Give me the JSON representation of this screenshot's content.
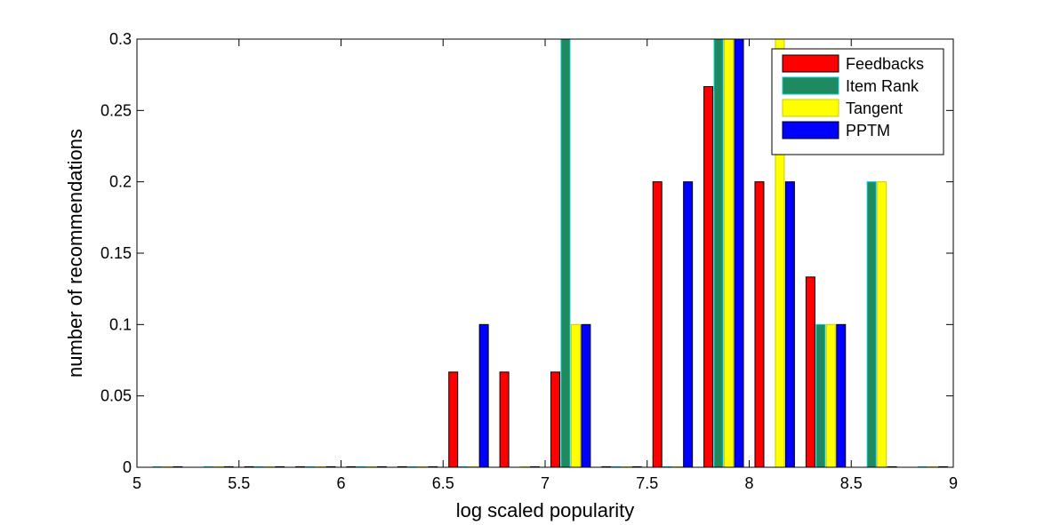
{
  "chart_data": {
    "type": "bar",
    "title": "",
    "xlabel": "log scaled popularity",
    "ylabel": "number of recommendations",
    "xlim": [
      5,
      9
    ],
    "ylim": [
      0,
      0.3
    ],
    "xticks": [
      "5",
      "5.5",
      "6",
      "6.5",
      "7",
      "7.5",
      "8",
      "8.5",
      "9"
    ],
    "yticks": [
      "0",
      "0.05",
      "0.1",
      "0.15",
      "0.2",
      "0.25",
      "0.3"
    ],
    "grid": false,
    "legend_position": "top-right",
    "series": [
      {
        "name": "Feedbacks",
        "color": "#ff0000",
        "edge": "#000000",
        "x": [
          5.55,
          5.8,
          6.05,
          6.3,
          6.55,
          6.8,
          7.05,
          7.3,
          7.55,
          7.8,
          8.05,
          8.3
        ],
        "values": [
          0,
          0,
          0,
          0,
          0.0667,
          0.0667,
          0.0667,
          0,
          0.2,
          0.2667,
          0.2,
          0.1333
        ]
      },
      {
        "name": "Item Rank",
        "color": "#1f8a60",
        "edge": "#00cccc",
        "x": [
          5.1,
          5.35,
          5.6,
          5.85,
          6.1,
          6.35,
          6.6,
          7.1,
          7.35,
          7.6,
          7.85,
          8.35,
          8.6,
          8.85
        ],
        "values": [
          0,
          0,
          0,
          0,
          0,
          0,
          0,
          0.3,
          0,
          0,
          0.3,
          0.1,
          0.2,
          0
        ]
      },
      {
        "name": "Tangent",
        "color": "#ffff00",
        "edge": "#cccc00",
        "x": [
          5.15,
          5.4,
          5.65,
          5.9,
          6.15,
          6.4,
          6.65,
          6.9,
          7.15,
          7.4,
          7.65,
          7.9,
          8.15,
          8.4,
          8.65,
          8.9
        ],
        "values": [
          0,
          0,
          0,
          0,
          0,
          0,
          0,
          0,
          0.1,
          0,
          0,
          0.3,
          0.3,
          0.1,
          0.2,
          0
        ]
      },
      {
        "name": "PPTM",
        "color": "#0000ff",
        "edge": "#000000",
        "x": [
          5.2,
          5.45,
          5.7,
          5.95,
          6.2,
          6.45,
          6.7,
          6.95,
          7.2,
          7.45,
          7.7,
          7.95,
          8.2,
          8.45,
          8.7,
          8.95
        ],
        "values": [
          0,
          0,
          0,
          0,
          0,
          0,
          0.1,
          0,
          0.1,
          0,
          0.2,
          0.3,
          0.2,
          0.1,
          0,
          0
        ]
      }
    ]
  }
}
